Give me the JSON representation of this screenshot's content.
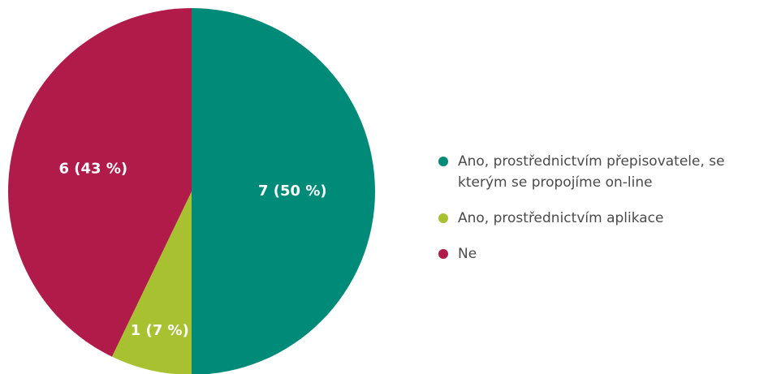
{
  "chart_data": {
    "type": "pie",
    "categories": [
      "Ano, prostřednictvím přepisovatele, se kterým se propojíme on-line",
      "Ano, prostřednictvím aplikace",
      "Ne"
    ],
    "values": [
      7,
      1,
      6
    ],
    "value_labels": [
      "7 (50 %)",
      "1 (7 %)",
      "6 (43 %)"
    ],
    "colors": [
      "#008a78",
      "#a8c130",
      "#b01b4a"
    ],
    "legend": "right"
  }
}
